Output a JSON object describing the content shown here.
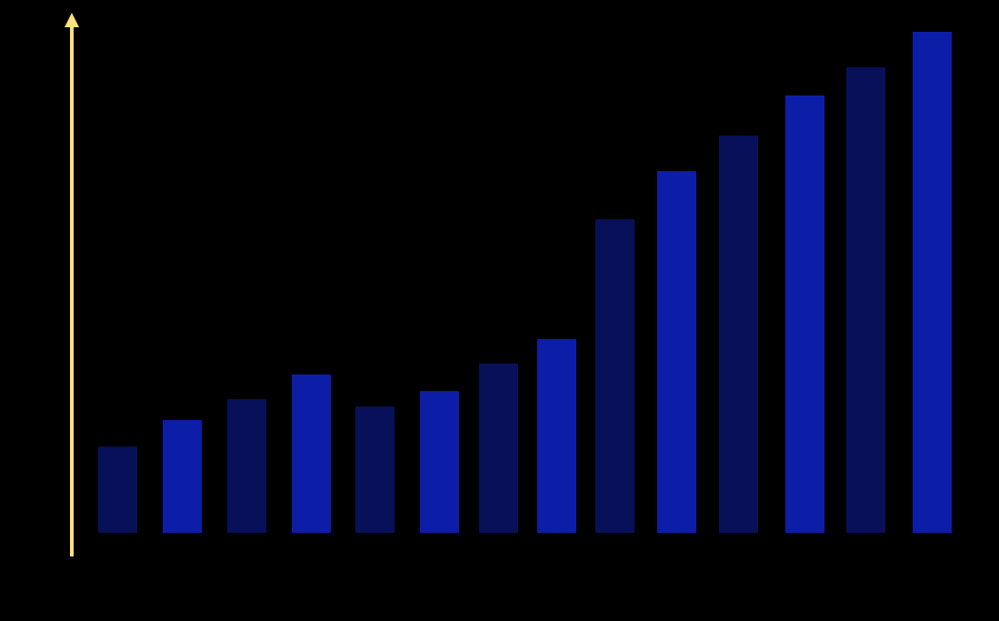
{
  "chart_data": {
    "type": "bar",
    "title": "",
    "xlabel": "",
    "ylabel": "",
    "values": [
      17.2,
      22.5,
      26.7,
      31.6,
      25.2,
      28.3,
      33.8,
      38.7,
      62.6,
      72.2,
      79.3,
      87.3,
      92.9,
      100
    ],
    "ylim": [
      0,
      100
    ],
    "grid": false,
    "legend": "none",
    "colors": {
      "background": "#000000",
      "bar_dark": "#08105a",
      "bar_bright": "#0c1ea8",
      "axis": "#ffe07a"
    },
    "bar_color_pattern": [
      "bar_dark",
      "bar_bright"
    ]
  }
}
